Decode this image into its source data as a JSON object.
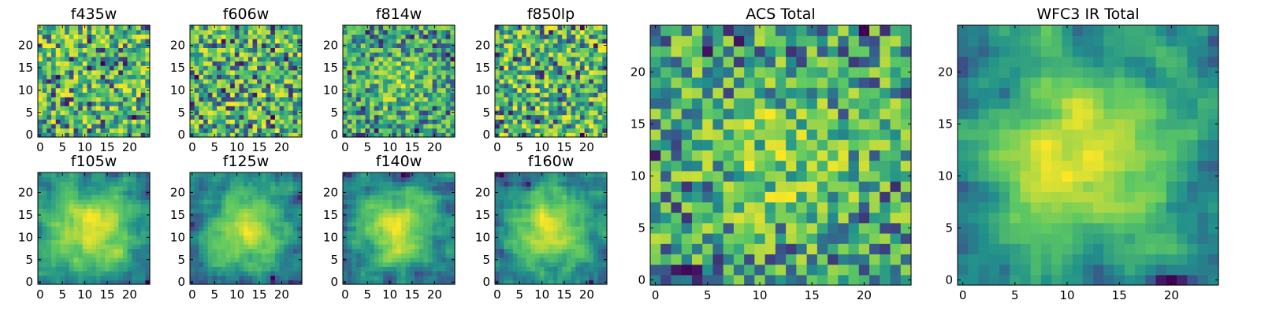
{
  "chart_data": [
    {
      "type": "heatmap",
      "title": "f435w",
      "grid_size": 25,
      "xlim": [
        0,
        24
      ],
      "ylim": [
        0,
        24
      ],
      "xticks": [
        0,
        5,
        10,
        15,
        20
      ],
      "yticks": [
        0,
        5,
        10,
        15,
        20
      ],
      "pattern": "noise",
      "seed": 11
    },
    {
      "type": "heatmap",
      "title": "f606w",
      "grid_size": 25,
      "xlim": [
        0,
        24
      ],
      "ylim": [
        0,
        24
      ],
      "xticks": [
        0,
        5,
        10,
        15,
        20
      ],
      "yticks": [
        0,
        5,
        10,
        15,
        20
      ],
      "pattern": "noise",
      "seed": 23
    },
    {
      "type": "heatmap",
      "title": "f814w",
      "grid_size": 25,
      "xlim": [
        0,
        24
      ],
      "ylim": [
        0,
        24
      ],
      "xticks": [
        0,
        5,
        10,
        15,
        20
      ],
      "yticks": [
        0,
        5,
        10,
        15,
        20
      ],
      "pattern": "noise-center",
      "seed": 37
    },
    {
      "type": "heatmap",
      "title": "f850lp",
      "grid_size": 25,
      "xlim": [
        0,
        24
      ],
      "ylim": [
        0,
        24
      ],
      "xticks": [
        0,
        5,
        10,
        15,
        20
      ],
      "yticks": [
        0,
        5,
        10,
        15,
        20
      ],
      "pattern": "noise",
      "seed": 41
    },
    {
      "type": "heatmap",
      "title": "f105w",
      "grid_size": 25,
      "xlim": [
        0,
        24
      ],
      "ylim": [
        0,
        24
      ],
      "xticks": [
        0,
        5,
        10,
        15,
        20
      ],
      "yticks": [
        0,
        5,
        10,
        15,
        20
      ],
      "pattern": "smooth-center",
      "seed": 53
    },
    {
      "type": "heatmap",
      "title": "f125w",
      "grid_size": 25,
      "xlim": [
        0,
        24
      ],
      "ylim": [
        0,
        24
      ],
      "xticks": [
        0,
        5,
        10,
        15,
        20
      ],
      "yticks": [
        0,
        5,
        10,
        15,
        20
      ],
      "pattern": "smooth-center",
      "seed": 67
    },
    {
      "type": "heatmap",
      "title": "f140w",
      "grid_size": 25,
      "xlim": [
        0,
        24
      ],
      "ylim": [
        0,
        24
      ],
      "xticks": [
        0,
        5,
        10,
        15,
        20
      ],
      "yticks": [
        0,
        5,
        10,
        15,
        20
      ],
      "pattern": "smooth-center",
      "seed": 71
    },
    {
      "type": "heatmap",
      "title": "f160w",
      "grid_size": 25,
      "xlim": [
        0,
        24
      ],
      "ylim": [
        0,
        24
      ],
      "xticks": [
        0,
        5,
        10,
        15,
        20
      ],
      "yticks": [
        0,
        5,
        10,
        15,
        20
      ],
      "pattern": "smooth-center",
      "seed": 89
    },
    {
      "type": "heatmap",
      "title": "ACS Total",
      "grid_size": 25,
      "xlim": [
        0,
        24
      ],
      "ylim": [
        0,
        24
      ],
      "xticks": [
        0,
        5,
        10,
        15,
        20
      ],
      "yticks": [
        0,
        5,
        10,
        15,
        20
      ],
      "pattern": "noise-center",
      "seed": 97
    },
    {
      "type": "heatmap",
      "title": "WFC3 IR Total",
      "grid_size": 25,
      "xlim": [
        0,
        24
      ],
      "ylim": [
        0,
        24
      ],
      "xticks": [
        0,
        5,
        10,
        15,
        20
      ],
      "yticks": [
        0,
        5,
        10,
        15,
        20
      ],
      "pattern": "smooth-center",
      "seed": 101
    }
  ],
  "colormap": [
    "#440154",
    "#3b528b",
    "#21918c",
    "#5ec962",
    "#fde725"
  ]
}
